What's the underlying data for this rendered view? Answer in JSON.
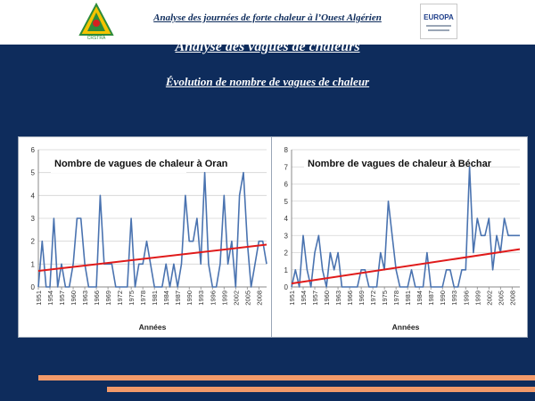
{
  "header": {
    "title": "Analyse des journées de forte chaleur à l’Ouest Algérien",
    "logo_left_text": "CRSTRA",
    "logo_right_text": "EUROPA"
  },
  "main": {
    "title": "Analyse des vagues de chaleurs",
    "subtitle": "Évolution de nombre de vagues de chaleur"
  },
  "colors": {
    "background": "#0e2c5c",
    "series": "#4a73b0",
    "trend": "#e01b1b",
    "accent_bar": "#f29a6a"
  },
  "chart_data": [
    {
      "type": "line",
      "title": "Nombre de vagues de chaleur à Oran",
      "xlabel": "Années",
      "ylabel": "",
      "x": [
        1951,
        1952,
        1953,
        1954,
        1955,
        1956,
        1957,
        1958,
        1959,
        1960,
        1961,
        1962,
        1963,
        1964,
        1965,
        1966,
        1967,
        1968,
        1969,
        1970,
        1971,
        1972,
        1973,
        1974,
        1975,
        1976,
        1977,
        1978,
        1979,
        1980,
        1981,
        1982,
        1983,
        1984,
        1985,
        1986,
        1987,
        1988,
        1989,
        1990,
        1991,
        1992,
        1993,
        1994,
        1995,
        1996,
        1997,
        1998,
        1999,
        2000,
        2001,
        2002,
        2003,
        2004,
        2005,
        2006,
        2007,
        2008,
        2009,
        2010
      ],
      "xticks": [
        "1951",
        "1954",
        "1957",
        "1960",
        "1963",
        "1966",
        "1969",
        "1972",
        "1975",
        "1978",
        "1981",
        "1984",
        "1987",
        "1990",
        "1993",
        "1996",
        "1999",
        "2002",
        "2005",
        "2008"
      ],
      "y": [
        0,
        2,
        0,
        0,
        3,
        0,
        1,
        0,
        0,
        1,
        3,
        3,
        1,
        0,
        0,
        0,
        4,
        1,
        1,
        1,
        0,
        0,
        0,
        0,
        3,
        0,
        1,
        1,
        2,
        1,
        0,
        0,
        0,
        1,
        0,
        1,
        0,
        1,
        4,
        2,
        2,
        3,
        1,
        5,
        1,
        0,
        0,
        1,
        4,
        1,
        2,
        0,
        4,
        5,
        2,
        0,
        1,
        2,
        2,
        1
      ],
      "ylim": [
        0,
        6
      ],
      "yticks": [
        0,
        1,
        2,
        3,
        4,
        5,
        6
      ],
      "trend": [
        0.7,
        1.85
      ],
      "grid": true,
      "legend": "none"
    },
    {
      "type": "line",
      "title": "Nombre de vagues de chaleur à Béchar",
      "xlabel": "Années",
      "ylabel": "",
      "x": [
        1951,
        1952,
        1953,
        1954,
        1955,
        1956,
        1957,
        1958,
        1959,
        1960,
        1961,
        1962,
        1963,
        1964,
        1965,
        1966,
        1967,
        1968,
        1969,
        1970,
        1971,
        1972,
        1973,
        1974,
        1975,
        1976,
        1977,
        1978,
        1979,
        1980,
        1981,
        1982,
        1983,
        1984,
        1985,
        1986,
        1987,
        1988,
        1989,
        1990,
        1991,
        1992,
        1993,
        1994,
        1995,
        1996,
        1997,
        1998,
        1999,
        2000,
        2001,
        2002,
        2003,
        2004,
        2005,
        2006,
        2007,
        2008,
        2009,
        2010
      ],
      "xticks": [
        "1951",
        "1954",
        "1957",
        "1960",
        "1963",
        "1966",
        "1969",
        "1972",
        "1975",
        "1978",
        "1981",
        "1984",
        "1987",
        "1990",
        "1993",
        "1996",
        "1999",
        "2002",
        "2005",
        "2008"
      ],
      "y": [
        0,
        1,
        0,
        3,
        1,
        0,
        2,
        3,
        1,
        0,
        2,
        1,
        2,
        0,
        0,
        0,
        0,
        0,
        1,
        1,
        0,
        0,
        0,
        2,
        1,
        5,
        3,
        1,
        0,
        0,
        0,
        1,
        0,
        0,
        0,
        2,
        0,
        0,
        0,
        0,
        1,
        1,
        0,
        0,
        1,
        1,
        7,
        2,
        4,
        3,
        3,
        4,
        1,
        3,
        2,
        4,
        3,
        3,
        3,
        3
      ],
      "ylim": [
        0,
        8
      ],
      "yticks": [
        0,
        1,
        2,
        3,
        4,
        5,
        6,
        7,
        8
      ],
      "trend": [
        0.2,
        2.2
      ],
      "grid": true,
      "legend": "none"
    }
  ]
}
